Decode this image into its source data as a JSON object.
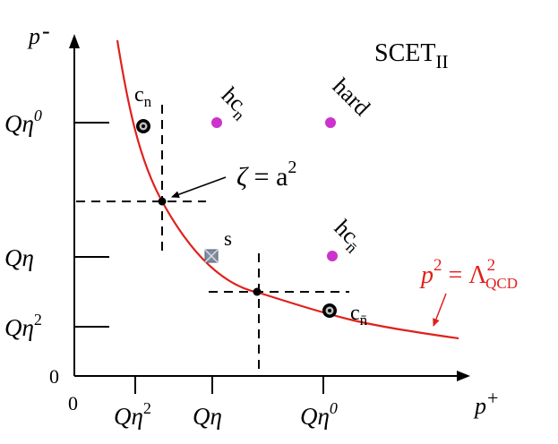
{
  "title": {
    "main": "SCET",
    "sub": "II"
  },
  "axes": {
    "y_label": {
      "var": "p",
      "sign": "-"
    },
    "x_label": {
      "var": "p",
      "sign": "+"
    },
    "origin_x": "0",
    "origin_y": "0"
  },
  "y_ticks": [
    {
      "base": "Qη",
      "sup": "0"
    },
    {
      "base": "Qη",
      "sup": ""
    },
    {
      "base": "Qη",
      "sup": "2"
    }
  ],
  "x_ticks": [
    {
      "base": "Qη",
      "sup": "2"
    },
    {
      "base": "Qη",
      "sup": ""
    },
    {
      "base": "Qη",
      "sup": "0"
    }
  ],
  "points": {
    "c_n": {
      "main": "c",
      "sub": "n"
    },
    "hc_n": {
      "main": "hc",
      "sub": "n"
    },
    "hard": "hard",
    "s": "s",
    "hc_nbar": {
      "main": "hc",
      "sub": "n̄"
    },
    "c_nbar": {
      "main": "c",
      "sub": "n̄"
    }
  },
  "annotations": {
    "zeta": {
      "lhs": "ζ",
      "eq": " = a",
      "sup": "2"
    },
    "curve": {
      "p": "p",
      "psup": "2",
      "eq": " = Λ",
      "sup": "2",
      "sub": "QCD"
    }
  },
  "colors": {
    "curve": "#e0201b",
    "magenta": "#cc33cc",
    "axis": "#000000",
    "soft": "#7f8c9e"
  }
}
